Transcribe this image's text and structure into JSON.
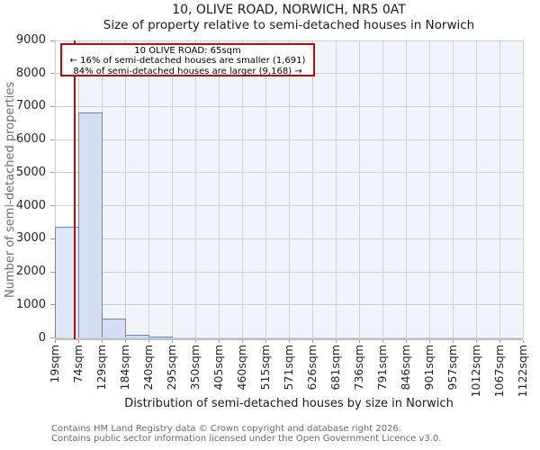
{
  "header": {
    "title": "10, OLIVE ROAD, NORWICH, NR5 0AT",
    "subtitle": "Size of property relative to semi-detached houses in Norwich"
  },
  "annotation": {
    "line1": "10 OLIVE ROAD: 65sqm",
    "line2": "← 16% of semi-detached houses are smaller (1,691)",
    "line3": "84% of semi-detached houses are larger (9,168) →"
  },
  "chart_data": {
    "type": "bar",
    "title": "10, OLIVE ROAD, NORWICH, NR5 0AT",
    "subtitle": "Size of property relative to semi-detached houses in Norwich",
    "xlabel": "Distribution of semi-detached houses by size in Norwich",
    "ylabel": "Number of semi-detached properties",
    "bin_edges_sqm": [
      19,
      74,
      129,
      184,
      240,
      295,
      350,
      405,
      460,
      515,
      571,
      626,
      681,
      736,
      791,
      846,
      901,
      957,
      1012,
      1067,
      1122
    ],
    "xtick_labels": [
      "19sqm",
      "74sqm",
      "129sqm",
      "184sqm",
      "240sqm",
      "295sqm",
      "350sqm",
      "405sqm",
      "460sqm",
      "515sqm",
      "571sqm",
      "626sqm",
      "681sqm",
      "736sqm",
      "791sqm",
      "846sqm",
      "901sqm",
      "957sqm",
      "1012sqm",
      "1067sqm",
      "1122sqm"
    ],
    "values": [
      3350,
      6820,
      580,
      100,
      40,
      0,
      0,
      0,
      0,
      0,
      0,
      0,
      0,
      0,
      0,
      0,
      0,
      0,
      0,
      0
    ],
    "ylim": [
      0,
      9000
    ],
    "yticks": [
      0,
      1000,
      2000,
      3000,
      4000,
      5000,
      6000,
      7000,
      8000,
      9000
    ],
    "grid": true,
    "legend": "none",
    "marker": {
      "value_sqm": 65,
      "label": "10 OLIVE ROAD: 65sqm",
      "smaller_pct": "16%",
      "smaller_count": "1,691",
      "larger_pct": "84%",
      "larger_count": "9,168"
    },
    "highlight_bin": 0,
    "colors": {
      "bar_fill_light": "#dfe8f6",
      "bar_fill": "#d4def1",
      "bar_border": "#5d8bc7",
      "marker_line": "#b50d0d",
      "annotation_border": "#b50d0d",
      "plot_bg_tint": "#f1f5fb",
      "highlight_band": "#ffffff",
      "gridline": "#cbcfda"
    }
  },
  "footer": {
    "line1": "Contains HM Land Registry data © Crown copyright and database right 2026.",
    "line2": "Contains public sector information licensed under the Open Government Licence v3.0."
  }
}
